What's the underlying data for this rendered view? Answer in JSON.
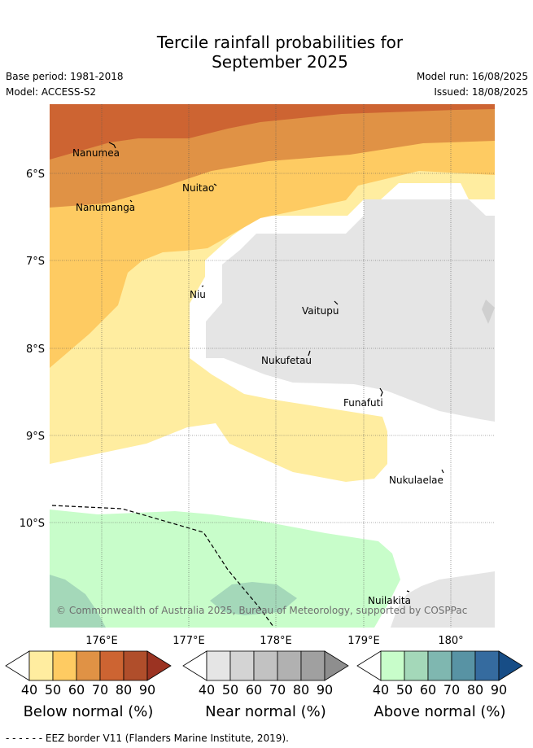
{
  "title_line1": "Tercile rainfall probabilities for",
  "title_line2": "September 2025",
  "base_period": "Base period: 1981-2018",
  "model": "Model: ACCESS-S2",
  "model_run": "Model run: 16/08/2025",
  "issued": "Issued: 18/08/2025",
  "copyright": "© Commonwealth of Australia 2025, Bureau of Meteorology, supported by COSPPac",
  "lat_labels": [
    "6°S",
    "7°S",
    "8°S",
    "9°S",
    "10°S"
  ],
  "lon_labels": [
    "176°E",
    "177°E",
    "178°E",
    "179°E",
    "180°"
  ],
  "islands": [
    "Nanumea",
    "Nuitao",
    "Nanumanga",
    "Niu",
    "Vaitupu",
    "Nukufetau",
    "Funafuti",
    "Nukulaelae",
    "Nuilakita"
  ],
  "legends": [
    {
      "title": "Below normal (%)",
      "ticks": [
        "40",
        "50",
        "60",
        "70",
        "80",
        "90"
      ],
      "colors": [
        "#ffeda0",
        "#fecb62",
        "#e09245",
        "#cd6432",
        "#b04e2b",
        "#9b3322"
      ]
    },
    {
      "title": "Near normal (%)",
      "ticks": [
        "40",
        "50",
        "60",
        "70",
        "80",
        "90"
      ],
      "colors": [
        "#e5e5e5",
        "#d4d4d4",
        "#c2c2c2",
        "#b1b1b1",
        "#a0a0a0",
        "#8e8e8e"
      ]
    },
    {
      "title": "Above normal (%)",
      "ticks": [
        "40",
        "50",
        "60",
        "70",
        "80",
        "90"
      ],
      "colors": [
        "#c8fdca",
        "#a4d8b9",
        "#7fb7b0",
        "#5893a4",
        "#356b9f",
        "#174d86"
      ]
    }
  ],
  "eez_note": "- -  - -  - - EEZ border V11 (Flanders Marine Institute, 2019)."
}
